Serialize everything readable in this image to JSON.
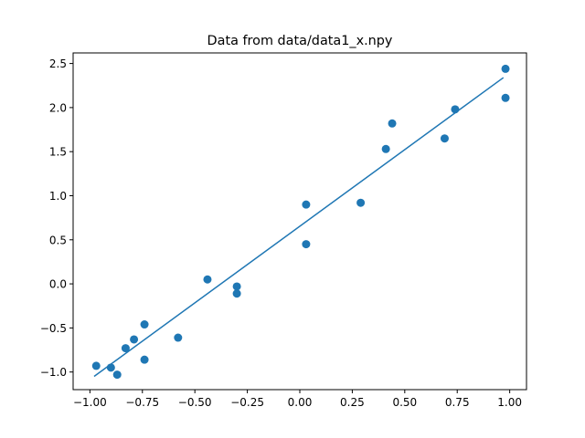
{
  "chart_data": {
    "type": "scatter",
    "title": "Data from data/data1_x.npy",
    "xlabel": "",
    "ylabel": "",
    "xlim": [
      -1.08,
      1.08
    ],
    "ylim": [
      -1.2,
      2.62
    ],
    "grid": false,
    "legend": "none",
    "x_ticks": [
      -1.0,
      -0.75,
      -0.5,
      -0.25,
      0.0,
      0.25,
      0.5,
      0.75,
      1.0
    ],
    "x_tick_labels": [
      "−1.00",
      "−0.75",
      "−0.50",
      "−0.25",
      "0.00",
      "0.25",
      "0.50",
      "0.75",
      "1.00"
    ],
    "y_ticks": [
      -1.0,
      -0.5,
      0.0,
      0.5,
      1.0,
      1.5,
      2.0,
      2.5
    ],
    "y_tick_labels": [
      "−1.0",
      "−0.5",
      "0.0",
      "0.5",
      "1.0",
      "1.5",
      "2.0",
      "2.5"
    ],
    "color": "#1f77b4",
    "series": [
      {
        "kind": "scatter",
        "points": [
          {
            "x": -0.97,
            "y": -0.93
          },
          {
            "x": -0.9,
            "y": -0.95
          },
          {
            "x": -0.87,
            "y": -1.03
          },
          {
            "x": -0.83,
            "y": -0.73
          },
          {
            "x": -0.79,
            "y": -0.63
          },
          {
            "x": -0.74,
            "y": -0.86
          },
          {
            "x": -0.74,
            "y": -0.46
          },
          {
            "x": -0.58,
            "y": -0.61
          },
          {
            "x": -0.44,
            "y": 0.05
          },
          {
            "x": -0.3,
            "y": -0.03
          },
          {
            "x": -0.3,
            "y": -0.11
          },
          {
            "x": 0.03,
            "y": 0.9
          },
          {
            "x": 0.03,
            "y": 0.45
          },
          {
            "x": 0.29,
            "y": 0.92
          },
          {
            "x": 0.41,
            "y": 1.53
          },
          {
            "x": 0.44,
            "y": 1.82
          },
          {
            "x": 0.69,
            "y": 1.65
          },
          {
            "x": 0.74,
            "y": 1.98
          },
          {
            "x": 0.98,
            "y": 2.44
          },
          {
            "x": 0.98,
            "y": 2.11
          }
        ]
      },
      {
        "kind": "line",
        "points": [
          {
            "x": -0.98,
            "y": -1.05
          },
          {
            "x": 0.97,
            "y": 2.34
          }
        ]
      }
    ]
  }
}
